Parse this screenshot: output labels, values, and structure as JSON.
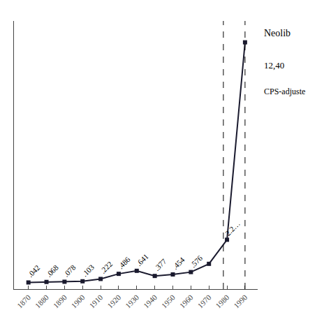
{
  "chart_data": {
    "type": "line",
    "x": [
      1870,
      1880,
      1890,
      1900,
      1910,
      1920,
      1930,
      1940,
      1950,
      1960,
      1970,
      1980,
      1990
    ],
    "values": [
      0.042,
      0.068,
      0.078,
      0.103,
      0.222,
      0.486,
      0.641,
      0.377,
      0.454,
      0.576,
      1.0,
      2.24,
      12.4
    ],
    "value_labels": [
      ".042",
      ".068",
      ".078",
      ".103",
      ".222",
      ".486",
      ".641",
      ".377",
      ".454",
      ".576",
      null,
      "2.2…",
      null
    ],
    "data_labels": true,
    "color": "#1a1a2e",
    "marker": "square",
    "vlines": [
      1978,
      1990
    ],
    "annotations": [
      "Neolib",
      "12,40",
      "CPS-adjuste"
    ],
    "xlim": [
      1862,
      1997
    ],
    "xticks": [
      1870,
      1880,
      1890,
      1900,
      1910,
      1920,
      1930,
      1940,
      1950,
      1960,
      1970,
      1980,
      1990
    ],
    "ylim": [
      -0.3,
      13.5
    ],
    "tick_labels": "x",
    "grid": false
  }
}
